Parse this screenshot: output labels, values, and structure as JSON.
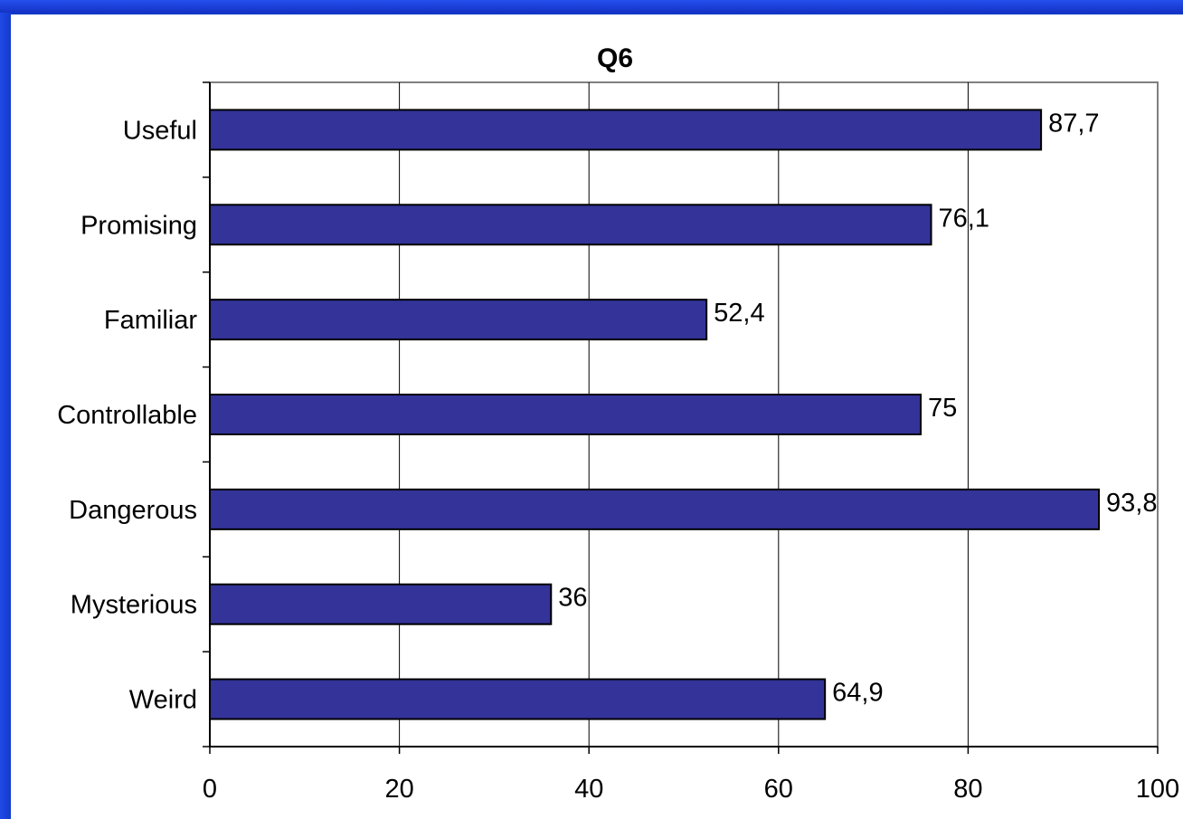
{
  "chart_data": {
    "type": "bar",
    "orientation": "horizontal",
    "title": "Q6",
    "categories": [
      "Useful",
      "Promising",
      "Familiar",
      "Controllable",
      "Dangerous",
      "Mysterious",
      "Weird"
    ],
    "values": [
      87.7,
      76.1,
      52.4,
      75,
      93.8,
      36,
      64.9
    ],
    "data_labels": [
      "87,7",
      "76,1",
      "52,4",
      "75",
      "93,8",
      "36",
      "64,9"
    ],
    "xlim": [
      0,
      100
    ],
    "x_ticks": [
      "0",
      "20",
      "40",
      "60",
      "80",
      "100"
    ],
    "grid": true,
    "legend": "none",
    "colors": {
      "bar": "#333399",
      "bar_border": "#000000",
      "grid": "#000000",
      "plot_border": "#808080",
      "background": "#ffffff",
      "frame": "#1238c8"
    }
  }
}
